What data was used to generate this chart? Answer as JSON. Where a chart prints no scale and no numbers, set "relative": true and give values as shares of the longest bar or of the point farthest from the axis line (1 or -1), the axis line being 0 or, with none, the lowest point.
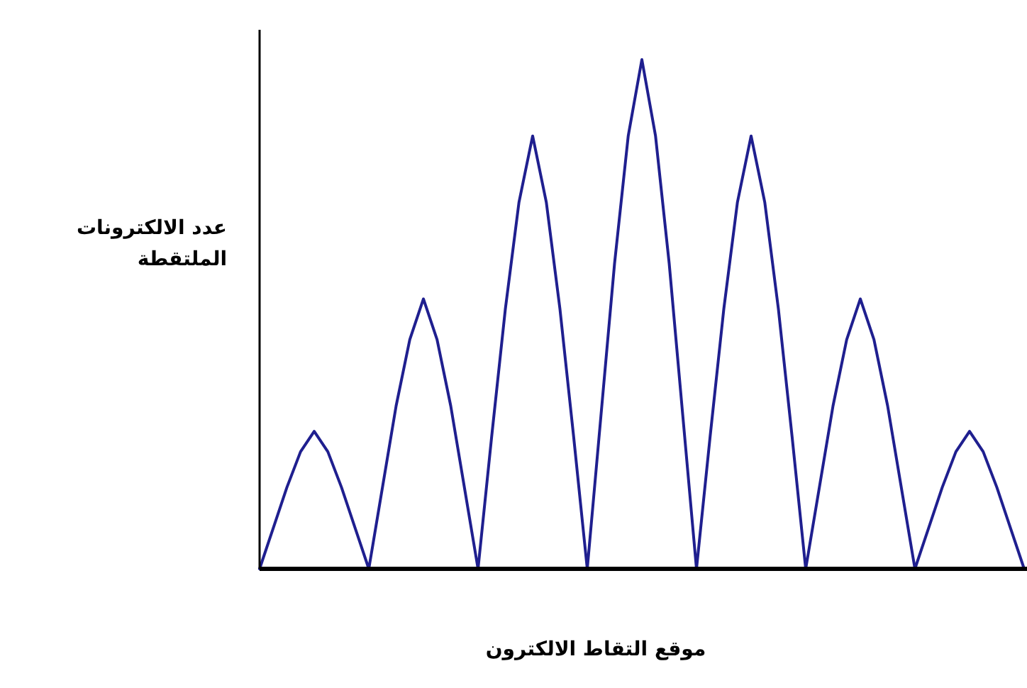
{
  "chart_data": {
    "type": "line",
    "relative": true,
    "marker": "none",
    "line_style": "solid",
    "ylabel": "عدد الالكترونات الملتقطة",
    "xlabel": "موقع التقاط الالكترون",
    "categories": [
      null,
      null,
      null,
      null,
      null,
      null,
      null,
      null,
      null,
      null,
      null,
      null,
      null,
      null,
      null,
      null,
      null,
      null,
      null,
      null,
      null,
      null,
      null,
      null,
      null,
      null,
      null,
      null,
      null,
      null,
      null,
      null,
      null,
      null,
      null,
      null,
      null,
      null,
      null,
      null,
      null,
      null,
      null,
      null,
      null,
      null,
      null,
      null,
      null,
      null,
      null,
      null,
      null,
      null,
      null,
      null,
      null
    ],
    "series": [
      {
        "color": "#1f1f8f",
        "values": [
          0,
          0.08,
          0.16,
          0.23,
          0.27,
          0.23,
          0.16,
          0.08,
          0,
          0.16,
          0.32,
          0.45,
          0.53,
          0.45,
          0.32,
          0.16,
          0,
          0.26,
          0.51,
          0.72,
          0.85,
          0.72,
          0.51,
          0.26,
          0,
          0.3,
          0.6,
          0.85,
          1,
          0.85,
          0.6,
          0.3,
          0,
          0.26,
          0.51,
          0.72,
          0.85,
          0.72,
          0.51,
          0.26,
          0,
          0.16,
          0.32,
          0.45,
          0.53,
          0.45,
          0.32,
          0.16,
          0,
          0.08,
          0.16,
          0.23,
          0.27,
          0.23,
          0.16,
          0.08,
          0
        ]
      }
    ]
  }
}
